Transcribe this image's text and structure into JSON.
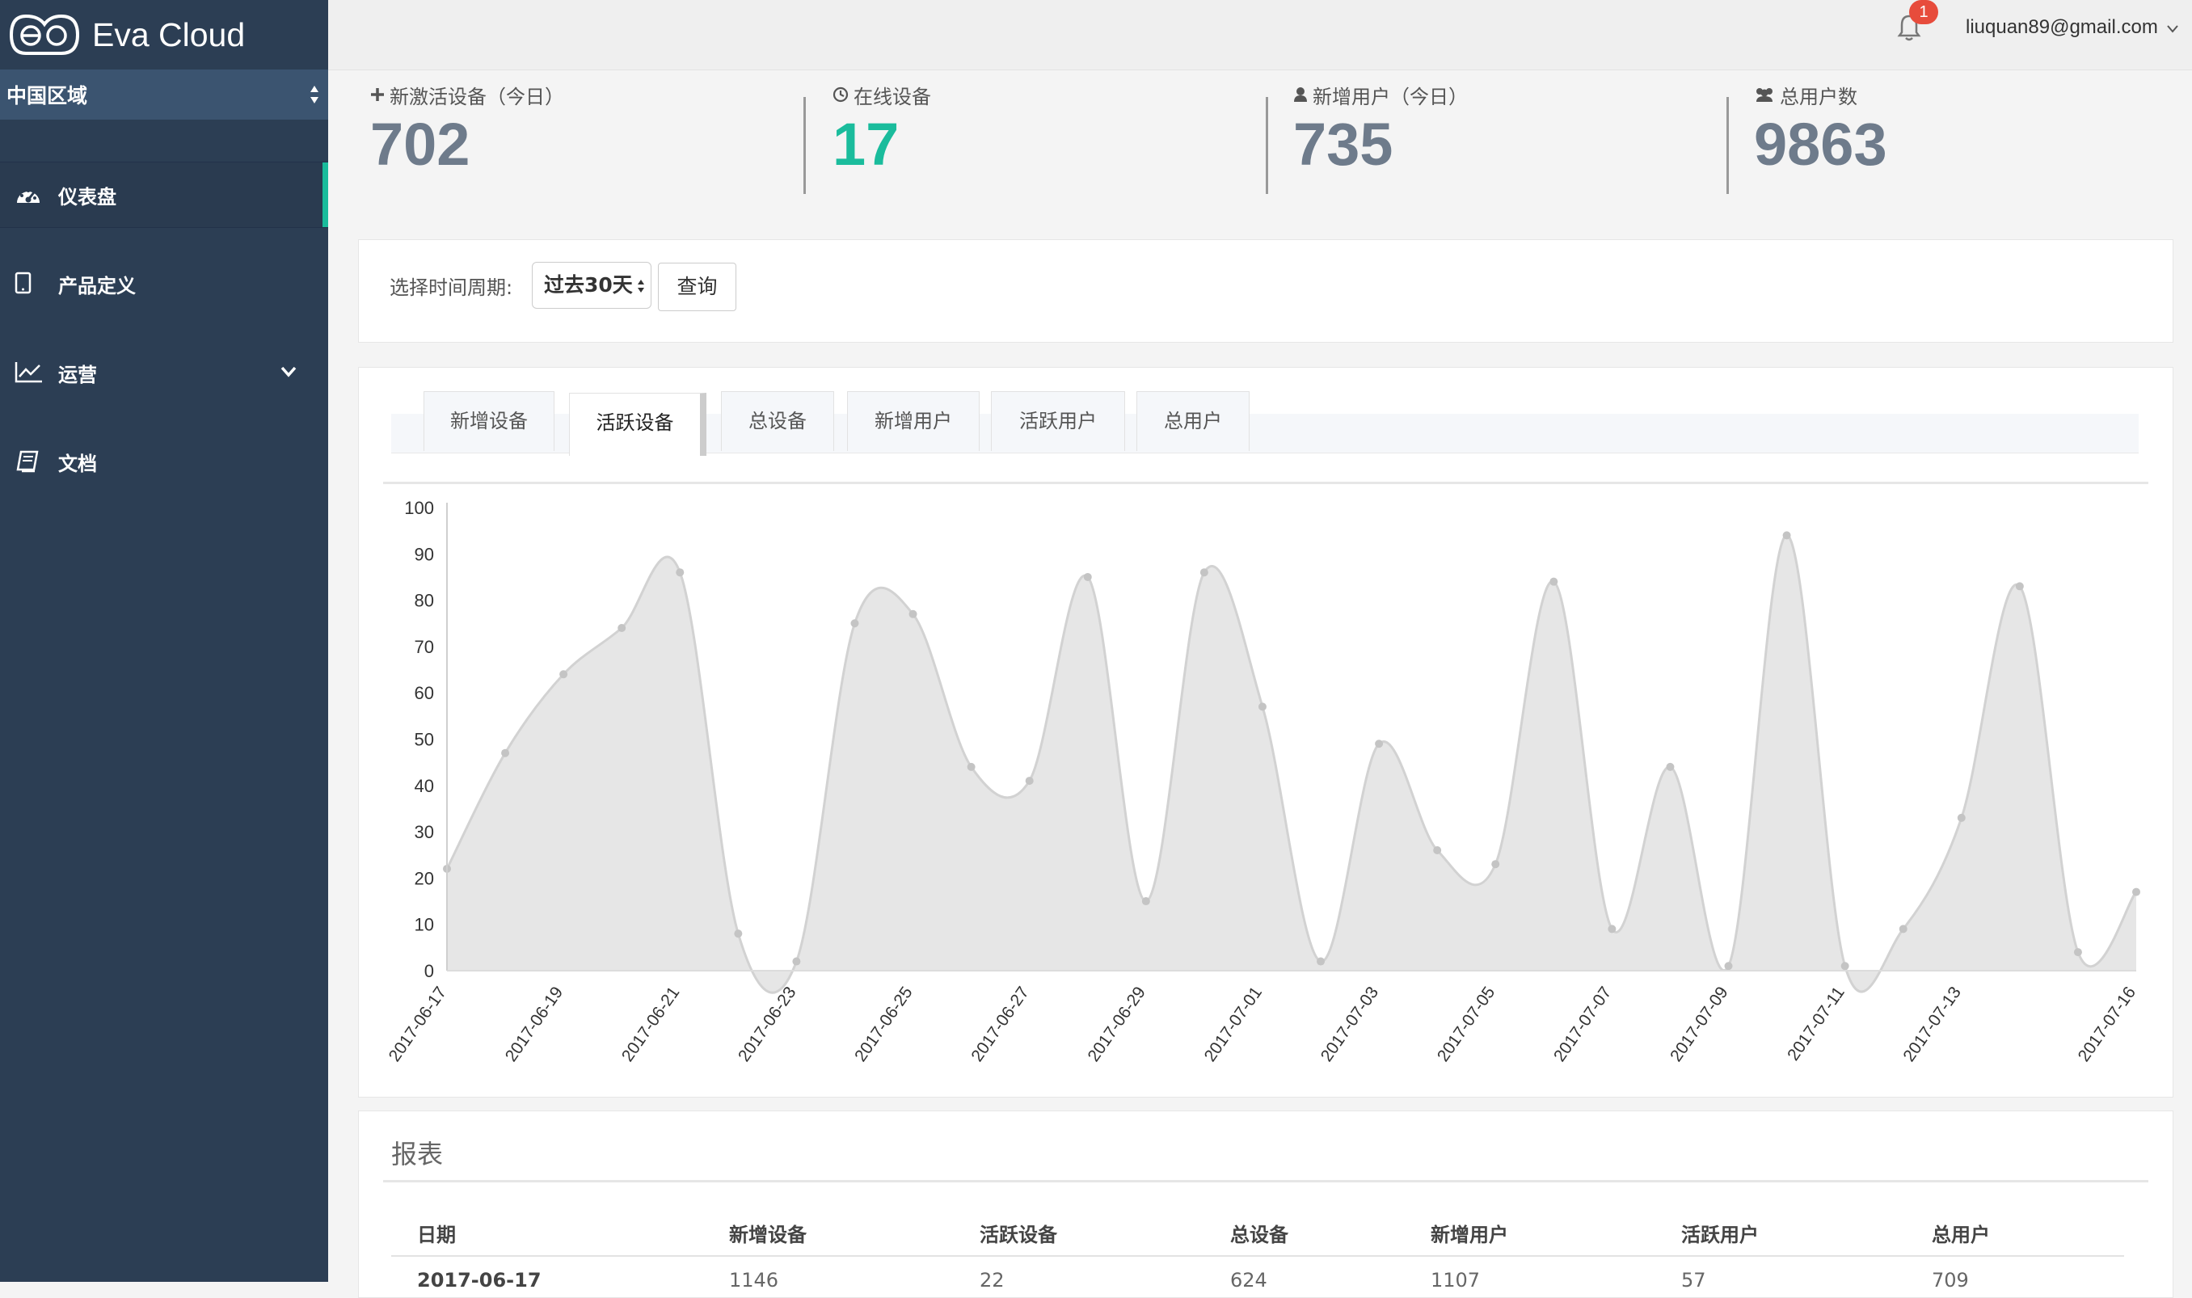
{
  "app": {
    "name": "Eva Cloud"
  },
  "sidebar": {
    "region": "中国区域",
    "items": [
      {
        "label": "仪表盘",
        "icon": "dashboard-icon",
        "active": true
      },
      {
        "label": "产品定义",
        "icon": "tablet-icon"
      },
      {
        "label": "运营",
        "icon": "line-chart-icon",
        "has_submenu": true
      },
      {
        "label": "文档",
        "icon": "book-icon"
      }
    ]
  },
  "header": {
    "notification_count": "1",
    "user_email": "liuquan89@gmail.com"
  },
  "stats": [
    {
      "label": "新激活设备（今日）",
      "icon": "plus-icon",
      "value": "702"
    },
    {
      "label": "在线设备",
      "icon": "clock-icon",
      "value": "17",
      "accent": "#1abc9c"
    },
    {
      "label": "新增用户（今日）",
      "icon": "user-icon",
      "value": "735"
    },
    {
      "label": "总用户数",
      "icon": "users-icon",
      "value": "9863"
    }
  ],
  "filter": {
    "label": "选择时间周期:",
    "period": "过去30天",
    "query_button": "查询"
  },
  "tabs": [
    "新增设备",
    "活跃设备",
    "总设备",
    "新增用户",
    "活跃用户",
    "总用户"
  ],
  "active_tab": "活跃设备",
  "chart_data": {
    "type": "area",
    "x": [
      "2017-06-17",
      "2017-06-18",
      "2017-06-19",
      "2017-06-20",
      "2017-06-21",
      "2017-06-22",
      "2017-06-23",
      "2017-06-24",
      "2017-06-25",
      "2017-06-26",
      "2017-06-27",
      "2017-06-28",
      "2017-06-29",
      "2017-06-30",
      "2017-07-01",
      "2017-07-02",
      "2017-07-03",
      "2017-07-04",
      "2017-07-05",
      "2017-07-06",
      "2017-07-07",
      "2017-07-08",
      "2017-07-09",
      "2017-07-10",
      "2017-07-11",
      "2017-07-12",
      "2017-07-13",
      "2017-07-14",
      "2017-07-15",
      "2017-07-16"
    ],
    "x_tick_labels": [
      "2017-06-17",
      "2017-06-19",
      "2017-06-21",
      "2017-06-23",
      "2017-06-25",
      "2017-06-27",
      "2017-06-29",
      "2017-07-01",
      "2017-07-03",
      "2017-07-05",
      "2017-07-07",
      "2017-07-09",
      "2017-07-11",
      "2017-07-13",
      "2017-07-16"
    ],
    "values": [
      22,
      47,
      64,
      74,
      86,
      8,
      2,
      75,
      77,
      44,
      41,
      85,
      15,
      86,
      57,
      2,
      49,
      26,
      23,
      84,
      9,
      44,
      1,
      94,
      1,
      9,
      33,
      83,
      4,
      17
    ],
    "ylim": [
      0,
      100
    ],
    "yticks": [
      0,
      10,
      20,
      30,
      40,
      50,
      60,
      70,
      80,
      90,
      100
    ],
    "fill_color": "#e6e6e6",
    "line_color": "#d2d2d2",
    "point_color": "#c4c4c4",
    "grid": false
  },
  "report": {
    "title": "报表",
    "columns": [
      "日期",
      "新增设备",
      "活跃设备",
      "总设备",
      "新增用户",
      "活跃用户",
      "总用户"
    ],
    "rows": [
      [
        "2017-06-17",
        "1146",
        "22",
        "624",
        "1107",
        "57",
        "709"
      ]
    ]
  }
}
